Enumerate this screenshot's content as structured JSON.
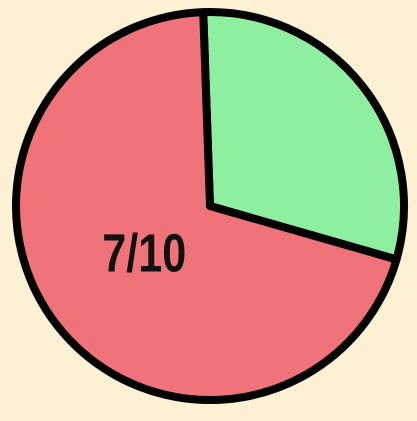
{
  "chart_data": {
    "type": "pie",
    "values": [
      3,
      7
    ],
    "value_labels": [
      null,
      "7/10"
    ],
    "colors": [
      "#8def9f",
      "#f0737a"
    ]
  }
}
